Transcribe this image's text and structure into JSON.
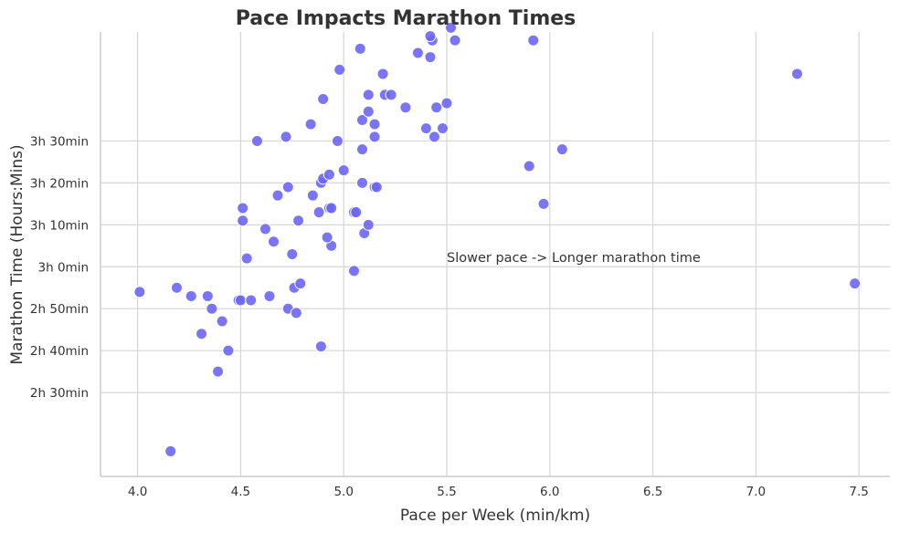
{
  "chart_data": {
    "type": "scatter",
    "title": "Pace Impacts Marathon Times",
    "xlabel": "Pace per Week (min/km)",
    "ylabel": "Marathon Time (Hours:Mins)",
    "xlim": [
      3.82,
      7.65
    ],
    "ylim": [
      130,
      236
    ],
    "x_ticks": [
      4.0,
      4.5,
      5.0,
      5.5,
      6.0,
      6.5,
      7.0,
      7.5
    ],
    "x_tick_labels": [
      "4.0",
      "4.5",
      "5.0",
      "5.5",
      "6.0",
      "6.5",
      "7.0",
      "7.5"
    ],
    "y_ticks": [
      150,
      160,
      170,
      180,
      190,
      200,
      210
    ],
    "y_tick_labels": [
      "2h 30min",
      "2h 40min",
      "2h 50min",
      "3h 0min",
      "3h 10min",
      "3h 20min",
      "3h 30min"
    ],
    "grid": true,
    "point_color": "#6a66f5",
    "annotation": {
      "text": "Slower pace -> Longer marathon time",
      "x": 5.5,
      "y": 181.2
    },
    "points": [
      {
        "x": 4.16,
        "y": 136
      },
      {
        "x": 4.39,
        "y": 155
      },
      {
        "x": 4.44,
        "y": 160
      },
      {
        "x": 4.31,
        "y": 164
      },
      {
        "x": 4.89,
        "y": 161
      },
      {
        "x": 4.41,
        "y": 167
      },
      {
        "x": 4.36,
        "y": 170
      },
      {
        "x": 4.49,
        "y": 172
      },
      {
        "x": 4.5,
        "y": 172
      },
      {
        "x": 4.55,
        "y": 172
      },
      {
        "x": 4.26,
        "y": 173
      },
      {
        "x": 4.34,
        "y": 173
      },
      {
        "x": 4.64,
        "y": 173
      },
      {
        "x": 4.01,
        "y": 174
      },
      {
        "x": 4.19,
        "y": 175
      },
      {
        "x": 4.73,
        "y": 170
      },
      {
        "x": 4.77,
        "y": 169
      },
      {
        "x": 4.76,
        "y": 175
      },
      {
        "x": 4.79,
        "y": 176
      },
      {
        "x": 5.05,
        "y": 179
      },
      {
        "x": 4.53,
        "y": 182
      },
      {
        "x": 4.75,
        "y": 183
      },
      {
        "x": 4.94,
        "y": 185
      },
      {
        "x": 4.66,
        "y": 186
      },
      {
        "x": 4.92,
        "y": 187
      },
      {
        "x": 5.1,
        "y": 188
      },
      {
        "x": 4.62,
        "y": 189
      },
      {
        "x": 5.12,
        "y": 190
      },
      {
        "x": 4.51,
        "y": 191
      },
      {
        "x": 4.78,
        "y": 191
      },
      {
        "x": 4.88,
        "y": 193
      },
      {
        "x": 5.05,
        "y": 193
      },
      {
        "x": 5.06,
        "y": 193
      },
      {
        "x": 4.51,
        "y": 194
      },
      {
        "x": 4.93,
        "y": 194
      },
      {
        "x": 4.94,
        "y": 194
      },
      {
        "x": 4.68,
        "y": 197
      },
      {
        "x": 4.85,
        "y": 197
      },
      {
        "x": 4.73,
        "y": 199
      },
      {
        "x": 5.15,
        "y": 199
      },
      {
        "x": 5.16,
        "y": 199
      },
      {
        "x": 4.89,
        "y": 200
      },
      {
        "x": 5.09,
        "y": 200
      },
      {
        "x": 4.9,
        "y": 201
      },
      {
        "x": 4.93,
        "y": 202
      },
      {
        "x": 5.0,
        "y": 203
      },
      {
        "x": 5.09,
        "y": 208
      },
      {
        "x": 4.58,
        "y": 210
      },
      {
        "x": 4.72,
        "y": 211
      },
      {
        "x": 4.97,
        "y": 210
      },
      {
        "x": 5.15,
        "y": 211
      },
      {
        "x": 5.44,
        "y": 211
      },
      {
        "x": 5.4,
        "y": 213
      },
      {
        "x": 5.48,
        "y": 213
      },
      {
        "x": 4.84,
        "y": 214
      },
      {
        "x": 5.15,
        "y": 214
      },
      {
        "x": 5.09,
        "y": 215
      },
      {
        "x": 5.12,
        "y": 217
      },
      {
        "x": 5.3,
        "y": 218
      },
      {
        "x": 5.45,
        "y": 218
      },
      {
        "x": 5.5,
        "y": 219
      },
      {
        "x": 4.9,
        "y": 220
      },
      {
        "x": 5.12,
        "y": 221
      },
      {
        "x": 5.2,
        "y": 221
      },
      {
        "x": 5.23,
        "y": 221
      },
      {
        "x": 5.19,
        "y": 226
      },
      {
        "x": 4.98,
        "y": 227
      },
      {
        "x": 5.42,
        "y": 230
      },
      {
        "x": 5.36,
        "y": 231
      },
      {
        "x": 5.08,
        "y": 232
      },
      {
        "x": 5.43,
        "y": 234
      },
      {
        "x": 5.54,
        "y": 234
      },
      {
        "x": 5.42,
        "y": 235
      },
      {
        "x": 5.52,
        "y": 237
      },
      {
        "x": 5.92,
        "y": 234
      },
      {
        "x": 7.2,
        "y": 226
      },
      {
        "x": 5.9,
        "y": 204
      },
      {
        "x": 6.06,
        "y": 208
      },
      {
        "x": 5.97,
        "y": 195
      },
      {
        "x": 7.48,
        "y": 176
      }
    ]
  }
}
